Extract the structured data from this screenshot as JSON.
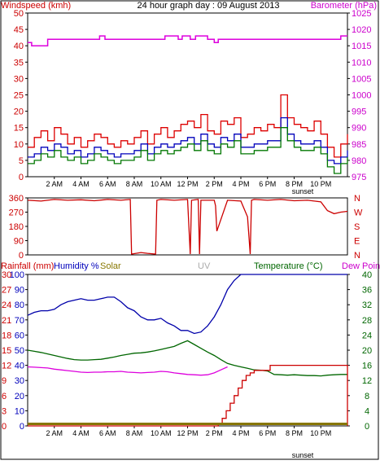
{
  "chart_data": [
    {
      "type": "line",
      "title": "24 hour graph day : 09 August 2013",
      "left_axis_label": "Windspeed (kmh)",
      "right_axis_label": "Barometer (hPa)",
      "ylim_left": [
        0,
        50
      ],
      "ylim_right": [
        975,
        1025
      ],
      "left_ticks": [
        "0",
        "5",
        "10",
        "15",
        "20",
        "25",
        "30",
        "35",
        "40",
        "45",
        "50"
      ],
      "right_ticks": [
        "975",
        "980",
        "985",
        "990",
        "995",
        "1000",
        "1005",
        "1010",
        "1015",
        "1020",
        "1025"
      ],
      "xlim_hours": [
        0,
        24
      ],
      "x_tick_labels": [
        "2 AM",
        "4 AM",
        "6 AM",
        "8 AM",
        "10 AM",
        "12 PM",
        "2 PM",
        "4 PM",
        "6 PM",
        "8 PM",
        "10 PM"
      ],
      "x_tick_hours": [
        2,
        4,
        6,
        8,
        10,
        12,
        14,
        16,
        18,
        20,
        22
      ],
      "sunset_label": "sunset",
      "sunset_hour": 20.0,
      "series": [
        {
          "key": "gust",
          "color": "#dd0000",
          "axis": "left",
          "x": [
            0,
            0.5,
            1,
            1.5,
            2,
            2.5,
            3,
            3.5,
            4,
            4.5,
            5,
            5.5,
            6,
            6.5,
            7,
            7.5,
            8,
            8.5,
            9,
            9.5,
            10,
            10.5,
            11,
            11.5,
            12,
            12.5,
            13,
            13.5,
            14,
            14.5,
            15,
            15.5,
            16,
            16.5,
            17,
            17.5,
            18,
            18.5,
            19,
            19.5,
            20,
            20.5,
            21,
            21.5,
            22,
            22.5,
            23,
            23.5,
            24
          ],
          "values": [
            9,
            12,
            14,
            11,
            15,
            13,
            10,
            12,
            9,
            11,
            13,
            12,
            10,
            9,
            11,
            10,
            12,
            14,
            10,
            13,
            15,
            12,
            14,
            16,
            17,
            15,
            19,
            14,
            13,
            17,
            16,
            18,
            12,
            13,
            15,
            14,
            16,
            15,
            25,
            18,
            16,
            15,
            14,
            17,
            13,
            9,
            6,
            10,
            13
          ]
        },
        {
          "key": "average",
          "color": "#0000bb",
          "axis": "left",
          "x": [
            0,
            0.5,
            1,
            1.5,
            2,
            2.5,
            3,
            3.5,
            4,
            4.5,
            5,
            5.5,
            6,
            6.5,
            7,
            7.5,
            8,
            8.5,
            9,
            9.5,
            10,
            10.5,
            11,
            11.5,
            12,
            12.5,
            13,
            13.5,
            14,
            14.5,
            15,
            15.5,
            16,
            16.5,
            17,
            17.5,
            18,
            18.5,
            19,
            19.5,
            20,
            20.5,
            21,
            21.5,
            22,
            22.5,
            23,
            23.5,
            24
          ],
          "values": [
            6,
            7,
            9,
            8,
            10,
            9,
            7,
            8,
            6,
            7,
            9,
            8,
            7,
            6,
            7,
            7,
            8,
            10,
            7,
            9,
            10,
            9,
            10,
            11,
            12,
            10,
            13,
            10,
            9,
            12,
            11,
            13,
            9,
            9,
            10,
            10,
            11,
            11,
            18,
            13,
            11,
            10,
            10,
            11,
            9,
            5,
            4,
            6,
            8
          ]
        },
        {
          "key": "wind_low",
          "color": "#007700",
          "axis": "left",
          "x": [
            0,
            0.5,
            1,
            1.5,
            2,
            2.5,
            3,
            3.5,
            4,
            4.5,
            5,
            5.5,
            6,
            6.5,
            7,
            7.5,
            8,
            8.5,
            9,
            9.5,
            10,
            10.5,
            11,
            11.5,
            12,
            12.5,
            13,
            13.5,
            14,
            14.5,
            15,
            15.5,
            16,
            16.5,
            17,
            17.5,
            18,
            18.5,
            19,
            19.5,
            20,
            20.5,
            21,
            21.5,
            22,
            22.5,
            23,
            23.5,
            24
          ],
          "values": [
            4,
            5,
            7,
            6,
            8,
            6,
            5,
            6,
            4,
            5,
            7,
            6,
            5,
            4,
            5,
            5,
            6,
            8,
            5,
            7,
            8,
            7,
            8,
            9,
            10,
            8,
            11,
            8,
            7,
            10,
            9,
            11,
            7,
            7,
            8,
            8,
            9,
            9,
            15,
            11,
            9,
            8,
            8,
            9,
            7,
            3,
            1,
            4,
            6
          ]
        },
        {
          "key": "barometer",
          "color": "#dd00dd",
          "axis": "right",
          "x": [
            0,
            0.3,
            1.5,
            5.2,
            5.4,
            5.8,
            6.3,
            10,
            10.3,
            11.3,
            11.6,
            12.2,
            12.6,
            13.5,
            14,
            14.3,
            15.2,
            22.8,
            23.5,
            24
          ],
          "values": [
            1016,
            1015,
            1017,
            1017,
            1018,
            1017,
            1017,
            1017,
            1018,
            1017,
            1018,
            1017,
            1018,
            1017,
            1016,
            1017,
            1017,
            1017,
            1018,
            1018
          ]
        }
      ]
    },
    {
      "type": "line",
      "left_ticks": [
        "360",
        "270",
        "180",
        "90",
        "0"
      ],
      "right_ticks": [
        "N",
        "W",
        "S",
        "E",
        "N"
      ],
      "ylim": [
        0,
        360
      ],
      "series": [
        {
          "key": "wind_direction",
          "color": "#cc0000",
          "x": [
            0,
            1,
            2,
            3,
            4,
            5,
            6,
            7,
            7.7,
            7.8,
            8.5,
            9,
            9.6,
            9.7,
            10,
            11,
            12,
            12.2,
            12.3,
            12.8,
            12.9,
            13,
            14,
            14.1,
            14.2,
            15,
            16,
            16.5,
            16.7,
            16.8,
            17,
            18,
            19,
            20,
            21,
            22,
            22.5,
            23,
            23.5,
            24
          ],
          "values": [
            345,
            340,
            350,
            345,
            348,
            342,
            350,
            345,
            350,
            5,
            15,
            10,
            5,
            345,
            350,
            345,
            350,
            5,
            345,
            350,
            5,
            345,
            345,
            310,
            150,
            345,
            340,
            240,
            5,
            345,
            350,
            345,
            350,
            342,
            345,
            335,
            280,
            260,
            270,
            275
          ]
        }
      ]
    },
    {
      "type": "line",
      "left_label_rainfall": "Rainfall (mm)",
      "left_label_humidity": "Humidity %",
      "left_label_solar": "Solar",
      "uv_label": "UV",
      "right_label_temperature": "Temperature (°C)",
      "right_label_dew_point": "Dew Point",
      "rain_ticks": [
        "0",
        "3",
        "6",
        "9",
        "12",
        "15",
        "18",
        "21",
        "24",
        "27",
        "30"
      ],
      "humidity_ticks": [
        "0",
        "10",
        "20",
        "30",
        "40",
        "50",
        "60",
        "70",
        "80",
        "90",
        "100"
      ],
      "temperature_ticks": [
        "0",
        "4",
        "8",
        "12",
        "16",
        "20",
        "24",
        "28",
        "32",
        "36",
        "40"
      ],
      "ylim_rain": [
        0,
        30
      ],
      "ylim_humidity": [
        0,
        100
      ],
      "ylim_temperature": [
        0,
        40
      ],
      "series": [
        {
          "key": "humidity",
          "color": "#0000aa",
          "axis": "humidity",
          "x": [
            0,
            0.5,
            1,
            1.5,
            2,
            2.5,
            3,
            3.5,
            4,
            4.5,
            5,
            5.5,
            6,
            6.5,
            7,
            7.5,
            8,
            8.5,
            9,
            9.5,
            10,
            10.5,
            11,
            11.5,
            12,
            12.5,
            13,
            13.5,
            14,
            14.5,
            15,
            15.5,
            16,
            17,
            18,
            19,
            20,
            21,
            22,
            23,
            24
          ],
          "values": [
            73,
            75,
            76,
            76,
            77,
            80,
            82,
            83,
            84,
            83,
            83,
            84,
            85,
            85,
            82,
            78,
            76,
            72,
            70,
            70,
            71,
            68,
            66,
            63,
            63,
            61,
            62,
            66,
            72,
            80,
            90,
            96,
            100,
            100,
            100,
            100,
            100,
            100,
            100,
            100,
            100
          ]
        },
        {
          "key": "temperature",
          "color": "#006600",
          "axis": "temperature",
          "x": [
            0,
            0.5,
            1,
            1.5,
            2,
            2.5,
            3,
            3.5,
            4,
            4.5,
            5,
            5.5,
            6,
            6.5,
            7,
            7.5,
            8,
            8.5,
            9,
            9.5,
            10,
            10.5,
            11,
            11.5,
            12,
            12.5,
            13,
            13.5,
            14,
            14.5,
            15,
            15.5,
            16,
            16.5,
            17,
            17.5,
            18,
            18.5,
            19,
            19.5,
            20,
            20.5,
            21,
            21.5,
            22,
            22.5,
            23,
            23.5,
            24
          ],
          "values": [
            20,
            19.7,
            19.4,
            19,
            18.6,
            18.2,
            17.8,
            17.5,
            17.4,
            17.4,
            17.5,
            17.6,
            17.9,
            18.2,
            18.6,
            18.9,
            19.2,
            19.3,
            19.5,
            19.8,
            20.2,
            20.6,
            21,
            21.8,
            22.5,
            21.5,
            20.5,
            19.5,
            18.6,
            17.5,
            16.5,
            16,
            15.6,
            15.2,
            14.8,
            14.7,
            14.5,
            13.6,
            13.5,
            13.4,
            13.5,
            13.4,
            13.3,
            13.3,
            13.2,
            13.4,
            13.5,
            13.6,
            13.6
          ]
        },
        {
          "key": "dew_point",
          "color": "#dd00dd",
          "axis": "temperature",
          "x": [
            0,
            0.5,
            1,
            1.5,
            2,
            2.5,
            3,
            3.5,
            4,
            4.5,
            5,
            5.5,
            6,
            6.5,
            7,
            7.5,
            8,
            8.5,
            9,
            9.5,
            10,
            10.5,
            11,
            11.5,
            12,
            12.5,
            13,
            13.5,
            14,
            14.5,
            15
          ],
          "values": [
            15.6,
            15.5,
            15.4,
            15.3,
            15,
            14.8,
            14.6,
            14.4,
            14.2,
            14.1,
            14.2,
            14.2,
            14.3,
            14.3,
            14.4,
            14.2,
            14.1,
            14,
            14.1,
            14.2,
            14.4,
            14.3,
            14,
            13.8,
            13.6,
            13.5,
            13.4,
            13.5,
            14,
            14.8,
            15.6
          ]
        },
        {
          "key": "rainfall",
          "color": "#cc0000",
          "axis": "rain",
          "x": [
            0,
            14,
            14.3,
            14.6,
            14.9,
            15.2,
            15.5,
            15.8,
            16.1,
            16.4,
            16.7,
            17,
            17.3,
            17.6,
            17.9,
            18.2,
            18.6,
            20,
            22,
            23.9,
            24
          ],
          "values": [
            0,
            0,
            0.5,
            1.5,
            3,
            4.5,
            6,
            7.5,
            9,
            10,
            10.5,
            11,
            11,
            11,
            11,
            12,
            12,
            12,
            12,
            12,
            0
          ]
        },
        {
          "key": "solar",
          "color": "#887700",
          "axis": "rain",
          "x": [
            0,
            24
          ],
          "values": [
            0.4,
            0.4
          ]
        }
      ]
    }
  ]
}
